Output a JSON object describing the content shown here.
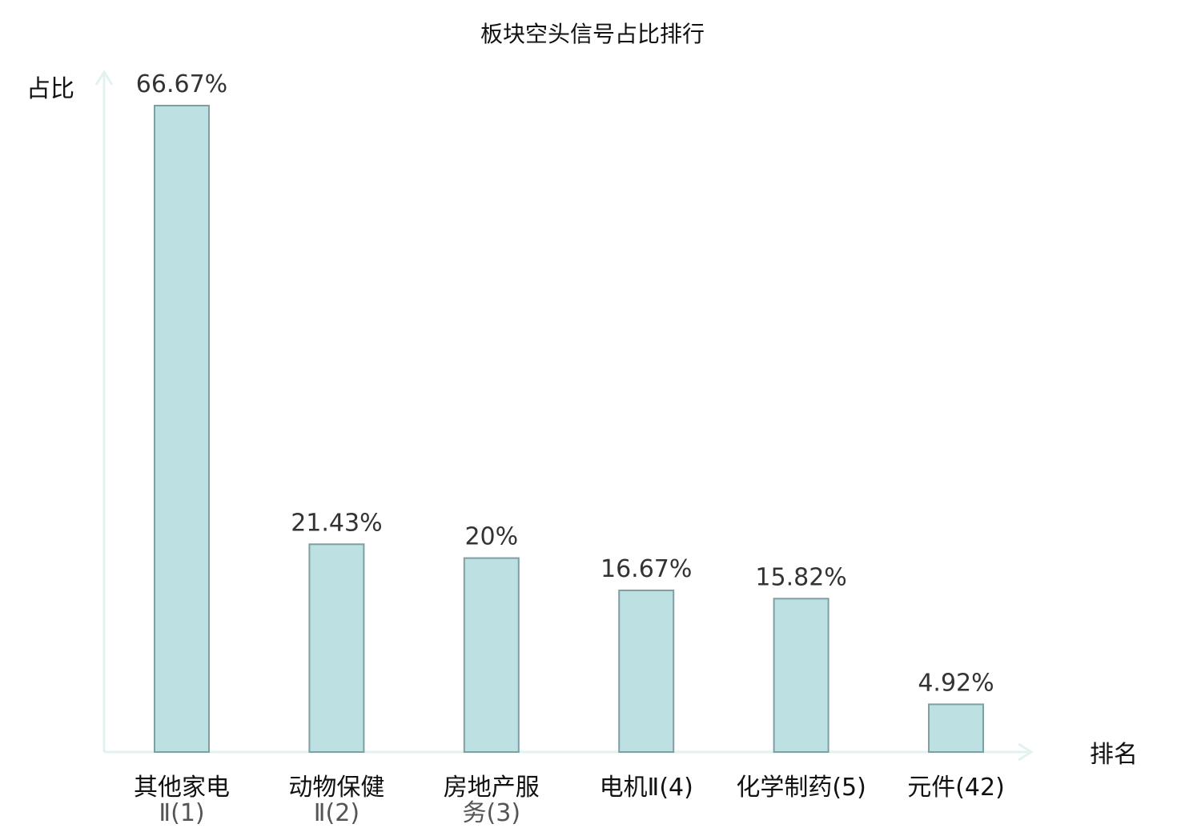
{
  "chart_data": {
    "type": "bar",
    "title": "板块空头信号占比排行",
    "ylabel": "占比",
    "xlabel": "排名",
    "ylim": [
      0,
      70
    ],
    "grid": false,
    "legend": "none",
    "bar_color": "#bde0e3",
    "bar_stroke": "#7f9fa3",
    "axis_color": "#e2f2f0",
    "highlight_color": "#e00000",
    "categories": [
      {
        "name": "其他家电",
        "line1": "其他家电",
        "line2": "Ⅱ(1)",
        "rank": "(1)",
        "value": 66.67,
        "label": "66.67%",
        "highlight": false
      },
      {
        "name": "动物保健",
        "line1": "动物保健",
        "line2": "Ⅱ(2)",
        "rank": "(2)",
        "value": 21.43,
        "label": "21.43%",
        "highlight": false
      },
      {
        "name": "房地产服务",
        "line1": "房地产服",
        "line2": "务(3)",
        "rank": "(3)",
        "value": 20,
        "label": "20%",
        "highlight": false
      },
      {
        "name": "电机Ⅱ",
        "line1": "电机Ⅱ(4)",
        "line2": "",
        "rank": "(4)",
        "value": 16.67,
        "label": "16.67%",
        "highlight": false
      },
      {
        "name": "化学制药",
        "line1": "化学制药(5)",
        "line2": "",
        "rank": "(5)",
        "value": 15.82,
        "label": "15.82%",
        "highlight": false
      },
      {
        "name": "元件",
        "line1": "元件(42)",
        "line2": "",
        "rank": "(42)",
        "value": 4.92,
        "label": "4.92%",
        "highlight": true
      }
    ]
  }
}
